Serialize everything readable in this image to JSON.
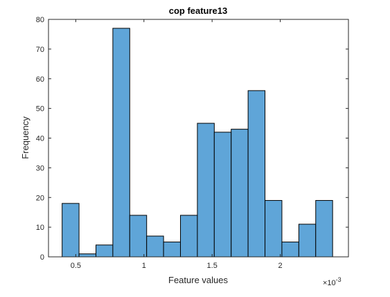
{
  "chart_data": {
    "type": "bar",
    "title": "cop feature13",
    "xlabel": "Feature values",
    "ylabel": "Frequency",
    "x_exponent_label": "×10",
    "x_exponent_power": "-3",
    "xlim": [
      0.3,
      2.5
    ],
    "ylim": [
      0,
      80
    ],
    "bin_width": 0.124,
    "bin_edges": [
      0.4,
      0.524,
      0.648,
      0.772,
      0.896,
      1.02,
      1.144,
      1.268,
      1.392,
      1.516,
      1.64,
      1.764,
      1.888,
      2.012,
      2.136,
      2.26,
      2.384
    ],
    "values": [
      18,
      1,
      4,
      77,
      14,
      7,
      5,
      14,
      45,
      42,
      43,
      56,
      19,
      5,
      11,
      19
    ],
    "x_ticks": [
      0.5,
      1,
      1.5,
      2
    ],
    "x_tick_labels": [
      "0.5",
      "1",
      "1.5",
      "2"
    ],
    "y_ticks": [
      0,
      10,
      20,
      30,
      40,
      50,
      60,
      70,
      80
    ],
    "y_tick_labels": [
      "0",
      "10",
      "20",
      "30",
      "40",
      "50",
      "60",
      "70",
      "80"
    ],
    "grid": false,
    "legend": "none",
    "bar_color": "#5fa5d8",
    "edge_color": "#000000"
  }
}
